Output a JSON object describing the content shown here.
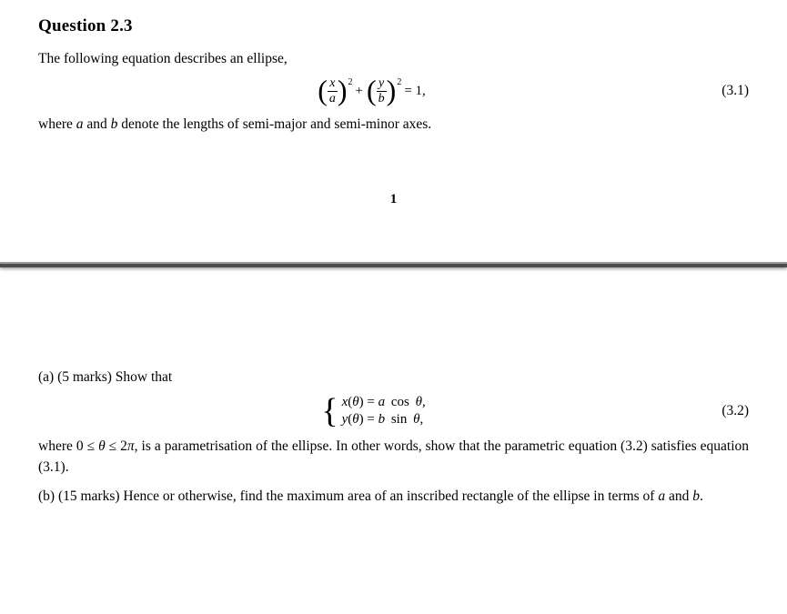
{
  "top": {
    "heading": "Question 2.3",
    "intro": "The following equation describes an ellipse,",
    "eq1": {
      "frac1_num": "x",
      "frac1_den": "a",
      "exp1": "2",
      "plus": "+",
      "frac2_num": "y",
      "frac2_den": "b",
      "exp2": "2",
      "equals": " = 1,",
      "number": "(3.1)"
    },
    "where_line_pre": "where ",
    "where_var_a": "a",
    "where_mid": " and ",
    "where_var_b": "b",
    "where_line_post": " denote the lengths of semi-major and semi-minor axes.",
    "page_number": "1"
  },
  "bottom": {
    "part_a_intro": "(a) (5 marks) Show that",
    "eq2": {
      "line1_fn": "x",
      "line1_arg": "θ",
      "line1_eq": " = ",
      "line1_coef": "a",
      "line1_trig": " cos ",
      "line1_var": "θ",
      "line1_comma": ",",
      "line2_fn": "y",
      "line2_arg": "θ",
      "line2_eq": " = ",
      "line2_coef": "b",
      "line2_trig": " sin ",
      "line2_var": "θ",
      "line2_comma": ",",
      "number": "(3.2)"
    },
    "part_a_post_pre": "where 0 ≤ ",
    "part_a_post_theta": "θ",
    "part_a_post_mid": " ≤ 2",
    "part_a_post_pi": "π",
    "part_a_post_rest": ", is a parametrisation of the ellipse.  In other words, show that the parametric equation (3.2) satisfies equation (3.1).",
    "part_b_pre": "(b) (15 marks) Hence or otherwise, find the maximum area of an inscribed rectangle of the ellipse in terms of ",
    "part_b_a": "a",
    "part_b_and": " and ",
    "part_b_b": "b",
    "part_b_period": "."
  }
}
